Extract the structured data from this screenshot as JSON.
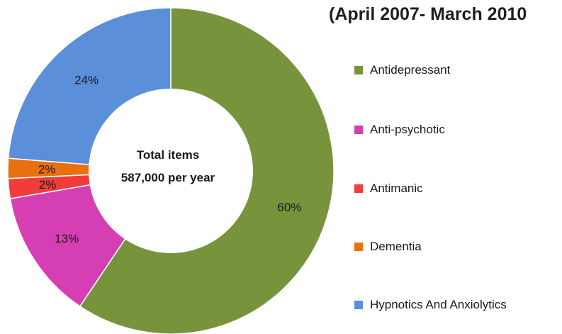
{
  "chart_data": {
    "type": "pie",
    "variant": "donut",
    "title": "(April 2007- March 2010",
    "center_text": [
      "Total items",
      "587,000 per year"
    ],
    "legend_position": "right",
    "slices": [
      {
        "label": "Antidepressant",
        "value": 60,
        "value_label": "60%",
        "color": "#77933c"
      },
      {
        "label": "Anti-psychotic",
        "value": 13,
        "value_label": "13%",
        "color": "#d63fb4"
      },
      {
        "label": "Antimanic",
        "value": 2,
        "value_label": "2%",
        "color": "#f23b3b"
      },
      {
        "label": "Dementia",
        "value": 2,
        "value_label": "2%",
        "color": "#e8700e"
      },
      {
        "label": "Hypnotics And Anxiolytics",
        "value": 24,
        "value_label": "24%",
        "color": "#5b8fd9"
      }
    ]
  }
}
